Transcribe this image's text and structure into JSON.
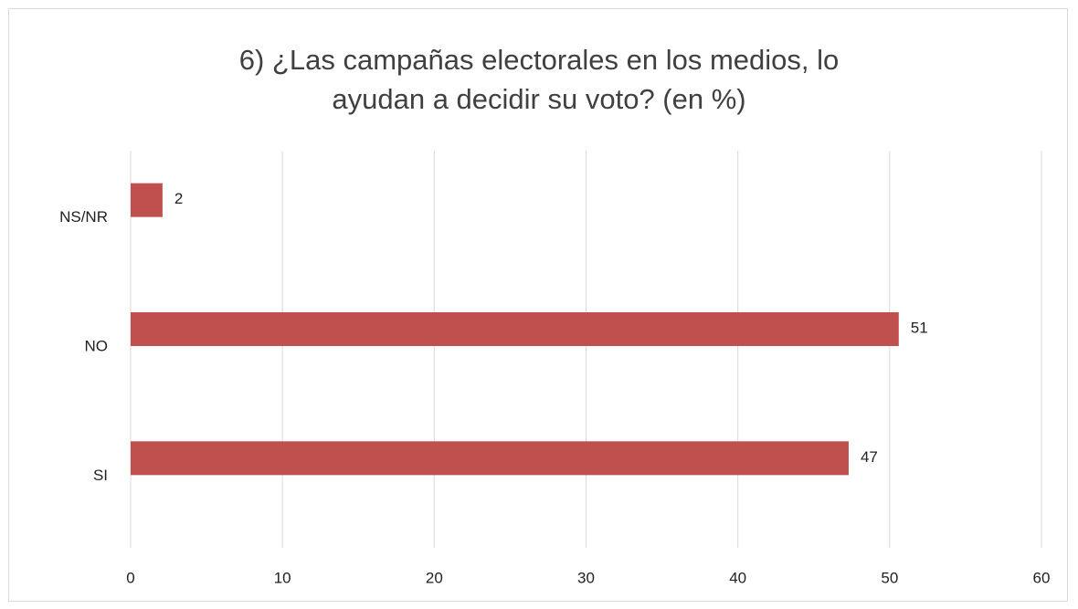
{
  "chart_data": {
    "type": "bar",
    "orientation": "horizontal",
    "title": "6) ¿Las campañas electorales en los medios, lo ayudan a decidir su voto? (en %)",
    "categories": [
      "NS/NR",
      "NO",
      "SI"
    ],
    "values": [
      2.1,
      50.6,
      47.3
    ],
    "value_labels": [
      "2",
      "51",
      "47"
    ],
    "color": "#c0504d",
    "xlim": [
      0,
      60
    ],
    "xticks": [
      0,
      10,
      20,
      30,
      40,
      50,
      60
    ],
    "grid": true
  }
}
